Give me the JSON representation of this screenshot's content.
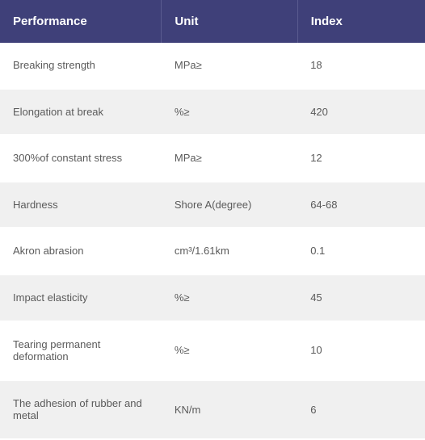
{
  "table": {
    "header_bg": "#3f4079",
    "header_text_color": "#ffffff",
    "row_even_bg": "#ffffff",
    "row_odd_bg": "#f0f0f0",
    "body_text_color": "#5a5a5a",
    "columns": [
      {
        "key": "performance",
        "label": "Performance",
        "width": "38%"
      },
      {
        "key": "unit",
        "label": "Unit",
        "width": "32%"
      },
      {
        "key": "index",
        "label": "Index",
        "width": "30%"
      }
    ],
    "rows": [
      {
        "performance": "Breaking strength",
        "unit": "MPa≥",
        "index": "18"
      },
      {
        "performance": "Elongation at break",
        "unit": "%≥",
        "index": "420"
      },
      {
        "performance": "300%of constant stress",
        "unit": "MPa≥",
        "index": "12"
      },
      {
        "performance": "Hardness",
        "unit": "Shore A(degree)",
        "index": "64-68"
      },
      {
        "performance": "Akron abrasion",
        "unit": "cm³/1.61km",
        "index": "0.1"
      },
      {
        "performance": "Impact elasticity",
        "unit": "%≥",
        "index": "45"
      },
      {
        "performance": "Tearing permanent deformation",
        "unit": "%≥",
        "index": "10"
      },
      {
        "performance": "The adhesion of rubber and metal",
        "unit": "KN/m",
        "index": "6"
      }
    ]
  }
}
